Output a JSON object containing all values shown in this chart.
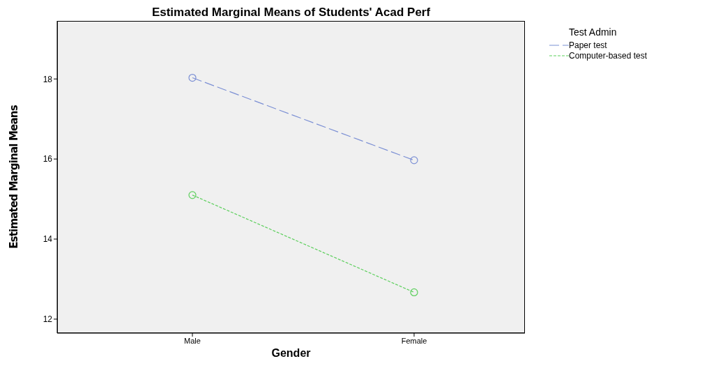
{
  "chart_data": {
    "type": "line",
    "title": "Estimated Marginal Means of Students' Acad Perf",
    "xlabel": "Gender",
    "ylabel": "Estimated Marginal Means",
    "legend_title": "Test Admin",
    "categories": [
      "Male",
      "Female"
    ],
    "series": [
      {
        "name": "Paper test",
        "color": "#7b8fd4",
        "values": [
          18.03,
          15.97
        ],
        "line_style": "dashed"
      },
      {
        "name": "Computer-based test",
        "color": "#5ccf5c",
        "values": [
          15.1,
          12.67
        ],
        "line_style": "dotted"
      }
    ],
    "ylim": [
      11.65,
      19.45
    ],
    "yticks": [
      12,
      14,
      16,
      18
    ],
    "grid": false,
    "legend": "top right",
    "marker": "circle"
  }
}
